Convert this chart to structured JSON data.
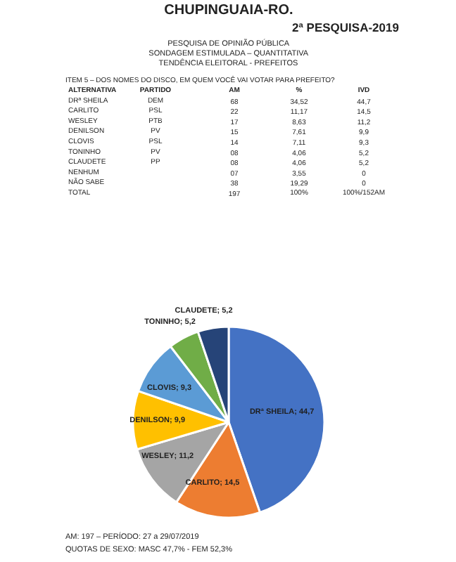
{
  "chart_data": {
    "type": "pie",
    "title": "CHUPINGUAIA-RO.",
    "subtitle": "2ª PESQUISA-2019",
    "categories": [
      "DRª SHEILA",
      "CARLITO",
      "WESLEY",
      "DENILSON",
      "CLOVIS",
      "TONINHO",
      "CLAUDETE"
    ],
    "values": [
      44.7,
      14.5,
      11.2,
      9.9,
      9.3,
      5.2,
      5.2
    ],
    "value_labels": [
      "; 44,7",
      "; 14,5",
      "; 11,2",
      "; 9,9",
      "; 9,3",
      "; 5,2",
      "; 5,2"
    ],
    "colors": [
      "#4472c4",
      "#ed7d31",
      "#a5a5a5",
      "#ffc000",
      "#5b9bd5",
      "#70ad47",
      "#264478"
    ],
    "legend": false,
    "annotations": [
      "PESQUISA DE OPINIÃO PÚBLICA",
      "SONDAGEM ESTIMULADA – QUANTITATIVA",
      "TENDÊNCIA ELEITORAL - PREFEITOS",
      "ITEM 5 – DOS NOMES DO DISCO, EM QUEM VOCÊ VAI VOTAR PARA PREFEITO?",
      "ALTERNATIVA\tPARTIDO\tAM\t%\tIVD",
      "DEM\t68\t34,52\t44,7",
      "PSL\t22\t11,17\t14,5",
      "PTB\t17\t8,63\t11,2",
      "PV\t15\t7,61\t9,9",
      "PSL\t14\t7,11\t9,3",
      "PV\t08\t4,06\t5,2",
      "PP\t08\t4,06\t5,2",
      "NENHUM\t\t07\t3,55\t0",
      "NÃO SABE\t\t38\t19,29\t0",
      "TOTAL\t\t197\t100%\t100%/152AM",
      "AM: 197 – PERÍODO: 27 a 29/07/2019",
      "QUOTAS DE SEXO: MASC 47,7% - FEM 52,3%"
    ]
  }
}
